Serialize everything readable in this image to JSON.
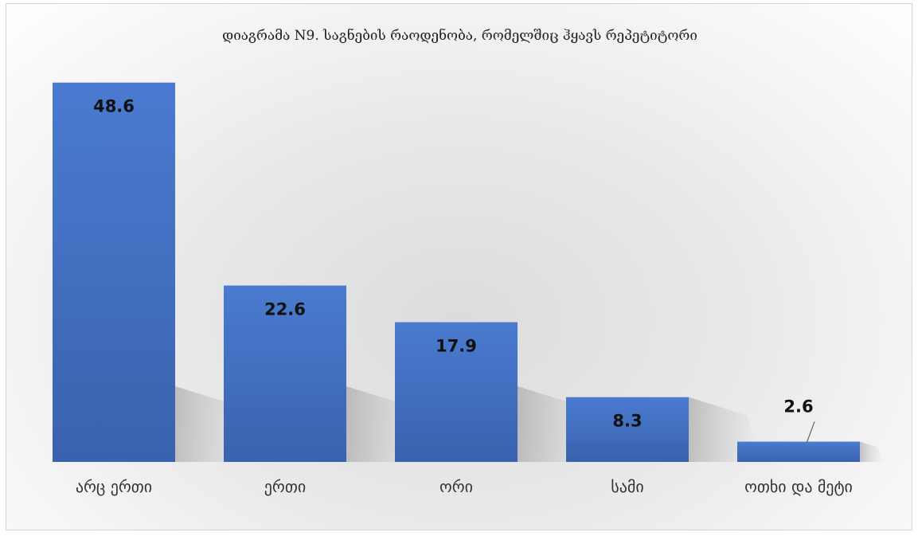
{
  "chart_data": {
    "type": "bar",
    "title": "დიაგრამა N9. საგნების რაოდენობა, რომელშიც ჰყავს რეპეტიტორი",
    "categories": [
      "არც ერთი",
      "ერთი",
      "ორი",
      "სამი",
      "ოთხი და მეტი"
    ],
    "values": [
      48.6,
      22.6,
      17.9,
      8.3,
      2.6
    ],
    "xlabel": "",
    "ylabel": "",
    "ylim": [
      0,
      50
    ],
    "grid": false,
    "legend": "none",
    "bar_color": "#4472c4",
    "data_labels": true
  }
}
